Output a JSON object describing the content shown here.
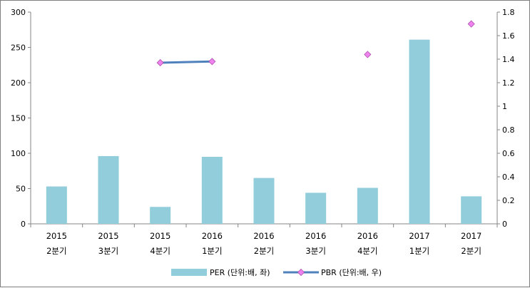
{
  "chart_data": {
    "type": "bar+line",
    "categories": [
      [
        "2015",
        "2분기"
      ],
      [
        "2015",
        "3분기"
      ],
      [
        "2015",
        "4분기"
      ],
      [
        "2016",
        "1분기"
      ],
      [
        "2016",
        "2분기"
      ],
      [
        "2016",
        "3분기"
      ],
      [
        "2016",
        "4분기"
      ],
      [
        "2017",
        "1분기"
      ],
      [
        "2017",
        "2분기"
      ]
    ],
    "series": [
      {
        "name": "PER (단위:배, 좌)",
        "type": "bar",
        "axis": "left",
        "color": "#92cddc",
        "values": [
          53,
          96,
          24,
          95,
          65,
          44,
          51,
          261,
          39
        ]
      },
      {
        "name": "PBR (단위:배, 우)",
        "type": "line",
        "axis": "right",
        "color": "#4f81bd",
        "marker_color": "#ee82ee",
        "values": [
          null,
          null,
          1.37,
          1.38,
          null,
          null,
          1.44,
          null,
          1.7
        ]
      }
    ],
    "left_axis": {
      "min": 0,
      "max": 300,
      "step": 50,
      "ticks": [
        "0",
        "50",
        "100",
        "150",
        "200",
        "250",
        "300"
      ]
    },
    "right_axis": {
      "min": 0,
      "max": 1.8,
      "step": 0.2,
      "ticks": [
        "0",
        "0.2",
        "0.4",
        "0.6",
        "0.8",
        "1",
        "1.2",
        "1.4",
        "1.6",
        "1.8"
      ]
    },
    "grid": false,
    "legend_position": "bottom"
  }
}
